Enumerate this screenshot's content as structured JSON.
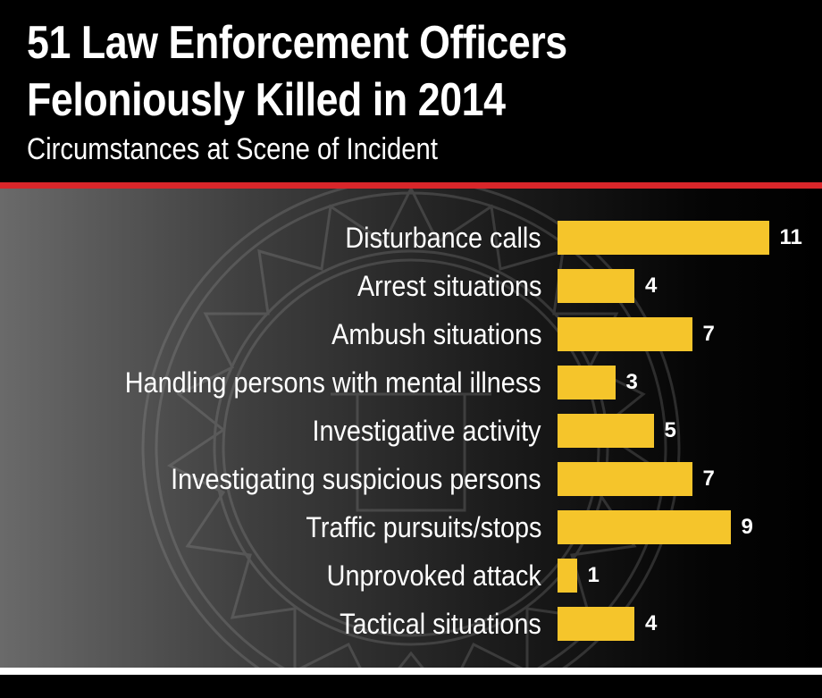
{
  "header": {
    "title_line1": "51 Law Enforcement Officers",
    "title_line2": "Feloniously Killed in 2014",
    "subtitle": "Circumstances at Scene of Incident"
  },
  "colors": {
    "bar": "#f5c52b",
    "accent_rule": "#d9262a",
    "background": "#000000",
    "text": "#ffffff"
  },
  "chart_data": {
    "type": "bar",
    "orientation": "horizontal",
    "title": "51 Law Enforcement Officers Feloniously Killed in 2014",
    "subtitle": "Circumstances at Scene of Incident",
    "xlabel": "",
    "ylabel": "",
    "grid": false,
    "legend": null,
    "categories": [
      "Disturbance calls",
      "Arrest situations",
      "Ambush situations",
      "Handling persons with mental illness",
      "Investigative activity",
      "Investigating suspicious persons",
      "Traffic pursuits/stops",
      "Unprovoked attack",
      "Tactical situations"
    ],
    "values": [
      11,
      4,
      7,
      3,
      5,
      7,
      9,
      1,
      4
    ],
    "data_labels": [
      "11",
      "4",
      "7",
      "3",
      "5",
      "7",
      "9",
      "1",
      "4"
    ],
    "xlim": [
      0,
      11
    ]
  }
}
